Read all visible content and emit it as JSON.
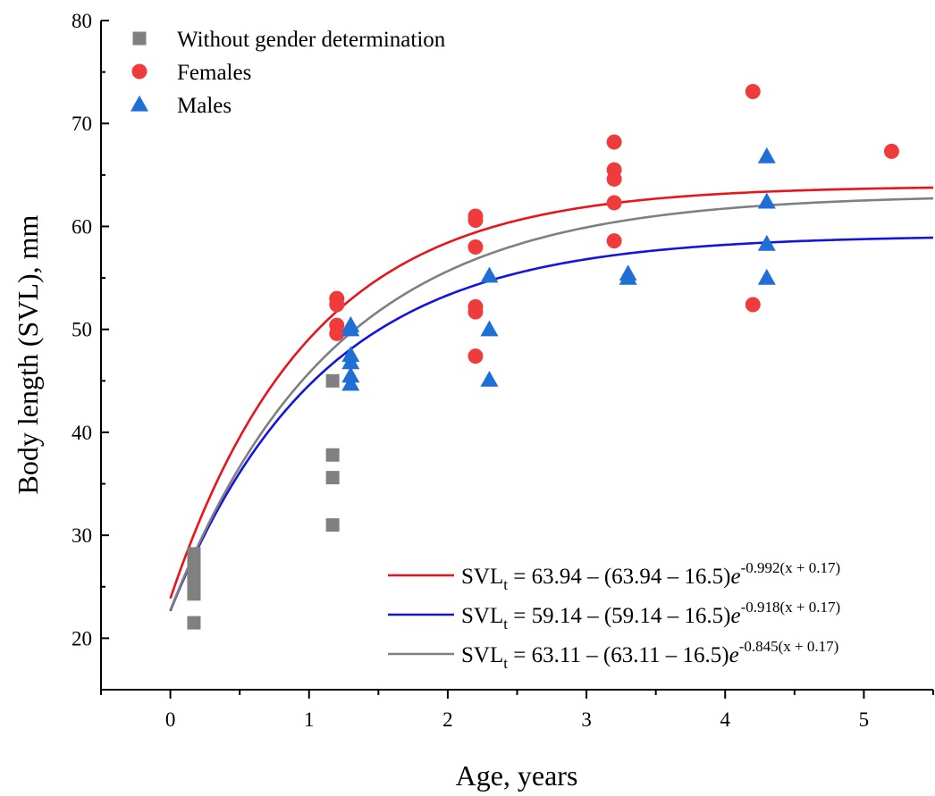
{
  "chart_data": {
    "type": "scatter",
    "xlabel": "Age, years",
    "ylabel": "Body length (SVL), mm",
    "xlim": [
      -0.5,
      5.5
    ],
    "ylim": [
      15,
      80
    ],
    "xticks": [
      0,
      1,
      2,
      3,
      4,
      5
    ],
    "yticks": [
      20,
      30,
      40,
      50,
      60,
      70,
      80
    ],
    "grid": false,
    "legend_position": "top-left",
    "series": [
      {
        "name": "Without gender determination",
        "marker": "square",
        "color": "#808080",
        "points": [
          [
            0.17,
            28.2
          ],
          [
            0.17,
            27.5
          ],
          [
            0.17,
            26.8
          ],
          [
            0.17,
            26.2
          ],
          [
            0.17,
            25.5
          ],
          [
            0.17,
            24.3
          ],
          [
            0.17,
            21.5
          ],
          [
            1.17,
            45.0
          ],
          [
            1.17,
            37.8
          ],
          [
            1.17,
            35.6
          ],
          [
            1.17,
            31.0
          ]
        ]
      },
      {
        "name": "Females",
        "marker": "circle",
        "color": "#ef3b3b",
        "points": [
          [
            1.2,
            53.0
          ],
          [
            1.2,
            52.4
          ],
          [
            1.2,
            50.4
          ],
          [
            1.2,
            49.6
          ],
          [
            2.2,
            61.0
          ],
          [
            2.2,
            60.6
          ],
          [
            2.2,
            58.0
          ],
          [
            2.2,
            52.2
          ],
          [
            2.2,
            51.7
          ],
          [
            2.2,
            47.4
          ],
          [
            3.2,
            68.2
          ],
          [
            3.2,
            65.5
          ],
          [
            3.2,
            64.6
          ],
          [
            3.2,
            62.3
          ],
          [
            3.2,
            58.6
          ],
          [
            4.2,
            73.1
          ],
          [
            4.2,
            52.4
          ],
          [
            5.2,
            67.3
          ]
        ]
      },
      {
        "name": "Males",
        "marker": "triangle",
        "color": "#1f6fd6",
        "points": [
          [
            1.3,
            50.4
          ],
          [
            1.3,
            50.0
          ],
          [
            1.3,
            47.5
          ],
          [
            1.3,
            46.8
          ],
          [
            1.3,
            45.5
          ],
          [
            1.3,
            44.7
          ],
          [
            2.3,
            55.2
          ],
          [
            2.3,
            50.0
          ],
          [
            2.3,
            45.1
          ],
          [
            3.3,
            55.4
          ],
          [
            3.3,
            55.0
          ],
          [
            4.3,
            66.8
          ],
          [
            4.3,
            62.4
          ],
          [
            4.3,
            58.3
          ],
          [
            4.3,
            55.0
          ]
        ]
      }
    ],
    "curves": [
      {
        "color": "#e8141a",
        "asymptote": 63.94,
        "initial": 16.5,
        "k": 0.992,
        "t0": 0.17,
        "label": {
          "prefix": "SVL",
          "sub": "t",
          "main": " = 63.94 – (63.94 – 16.5)",
          "e": "e",
          "exp": "-0.992(x + 0.17)"
        }
      },
      {
        "color": "#1414e0",
        "asymptote": 59.14,
        "initial": 16.5,
        "k": 0.918,
        "t0": 0.17,
        "label": {
          "prefix": "SVL",
          "sub": "t",
          "main": " = 59.14 – (59.14 – 16.5)",
          "e": "e",
          "exp": "-0.918(x + 0.17)"
        }
      },
      {
        "color": "#808080",
        "asymptote": 63.11,
        "initial": 16.5,
        "k": 0.845,
        "t0": 0.17,
        "label": {
          "prefix": "SVL",
          "sub": "t",
          "main": " = 63.11 – (63.11 – 16.5)",
          "e": "e",
          "exp": "-0.845(x + 0.17)"
        }
      }
    ]
  }
}
